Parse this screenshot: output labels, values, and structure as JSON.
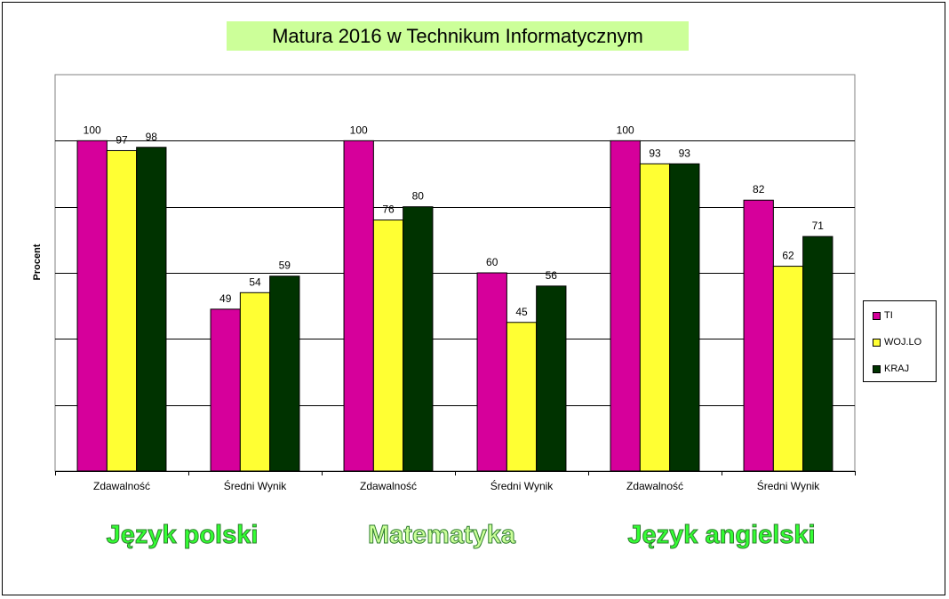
{
  "chart_data": {
    "type": "bar",
    "title": "Matura 2016 w Technikum  Informatycznym",
    "ylabel": "Procent",
    "xlabel": "",
    "ylim": [
      0,
      120
    ],
    "grid": true,
    "legend_position": "right",
    "categories": [
      "Zdawalność",
      "Średni Wynik",
      "Zdawalność",
      "Średni Wynik",
      "Zdawalność",
      "Średni Wynik"
    ],
    "series": [
      {
        "name": "TI",
        "values": [
          100,
          49,
          100,
          60,
          100,
          82
        ]
      },
      {
        "name": "WOJ.LO",
        "values": [
          97,
          54,
          76,
          45,
          93,
          62
        ]
      },
      {
        "name": "KRAJ",
        "values": [
          98,
          59,
          80,
          56,
          93,
          71
        ]
      }
    ],
    "groups": [
      "Język polski",
      "Matematyka",
      "Język angielski"
    ]
  },
  "colors": {
    "series": [
      "#d6009b",
      "#ffff33",
      "#003300"
    ],
    "group_text": [
      "#33ff33",
      "#ccff99",
      "#33ff33"
    ],
    "title_bg": "#ccff99"
  }
}
